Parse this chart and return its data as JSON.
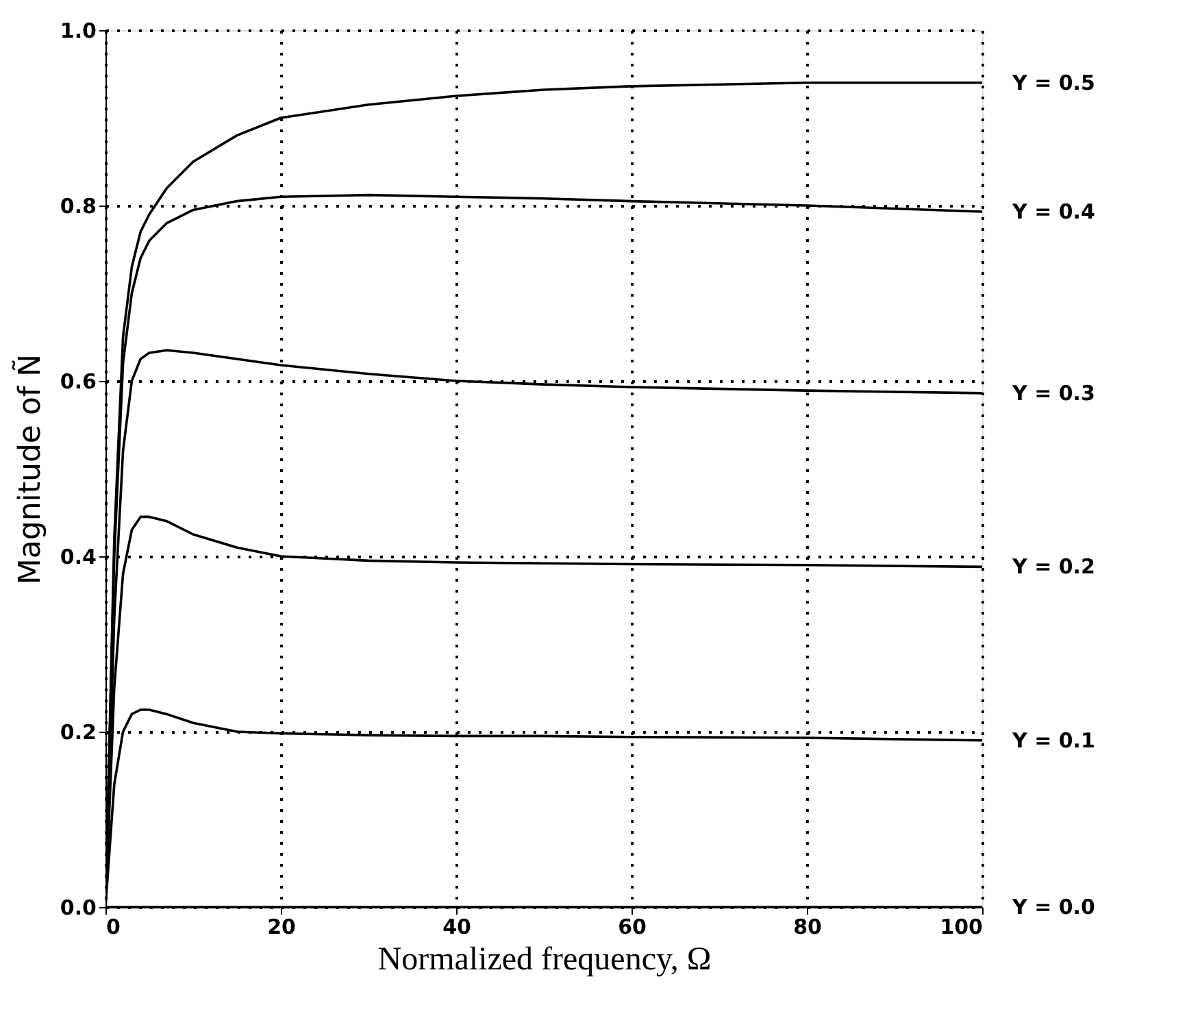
{
  "chart_data": {
    "type": "line",
    "xlabel": "Normalized frequency, Ω",
    "ylabel": "Magnitude of Ñ",
    "x": [
      0,
      1,
      2,
      3,
      4,
      5,
      7,
      10,
      15,
      20,
      30,
      40,
      50,
      60,
      80,
      100
    ],
    "series": [
      {
        "name": "Y = 0.5",
        "color": "#000000",
        "values": [
          0,
          0.42,
          0.65,
          0.73,
          0.77,
          0.79,
          0.82,
          0.85,
          0.88,
          0.9,
          0.915,
          0.925,
          0.932,
          0.936,
          0.94,
          0.94
        ]
      },
      {
        "name": "Y = 0.4",
        "color": "#000000",
        "values": [
          0,
          0.4,
          0.62,
          0.7,
          0.74,
          0.76,
          0.78,
          0.795,
          0.805,
          0.81,
          0.812,
          0.81,
          0.808,
          0.805,
          0.8,
          0.793
        ]
      },
      {
        "name": "Y = 0.3",
        "color": "#000000",
        "values": [
          0,
          0.33,
          0.52,
          0.6,
          0.625,
          0.632,
          0.635,
          0.632,
          0.625,
          0.618,
          0.608,
          0.6,
          0.596,
          0.593,
          0.589,
          0.586
        ]
      },
      {
        "name": "Y = 0.2",
        "color": "#000000",
        "values": [
          0,
          0.25,
          0.38,
          0.43,
          0.445,
          0.445,
          0.44,
          0.425,
          0.41,
          0.4,
          0.395,
          0.393,
          0.392,
          0.391,
          0.39,
          0.388
        ]
      },
      {
        "name": "Y = 0.1",
        "color": "#000000",
        "values": [
          0,
          0.14,
          0.2,
          0.22,
          0.225,
          0.225,
          0.22,
          0.21,
          0.2,
          0.198,
          0.196,
          0.195,
          0.195,
          0.194,
          0.193,
          0.19
        ]
      },
      {
        "name": "Y = 0.0",
        "color": "#000000",
        "values": [
          0,
          0,
          0,
          0,
          0,
          0,
          0,
          0,
          0,
          0,
          0,
          0,
          0,
          0,
          0,
          0
        ]
      }
    ],
    "xlim": [
      0,
      100
    ],
    "xticks": [
      0,
      20,
      40,
      60,
      80,
      100
    ],
    "ylim": [
      0,
      1.0
    ],
    "yticks": [
      {
        "value": 0,
        "label": "0.0"
      },
      0.2,
      0.4,
      0.6,
      0.8,
      {
        "value": 1.0,
        "label": "1.0"
      }
    ],
    "grid": true,
    "line_style": "solid",
    "marker": "none",
    "legend": "right"
  }
}
